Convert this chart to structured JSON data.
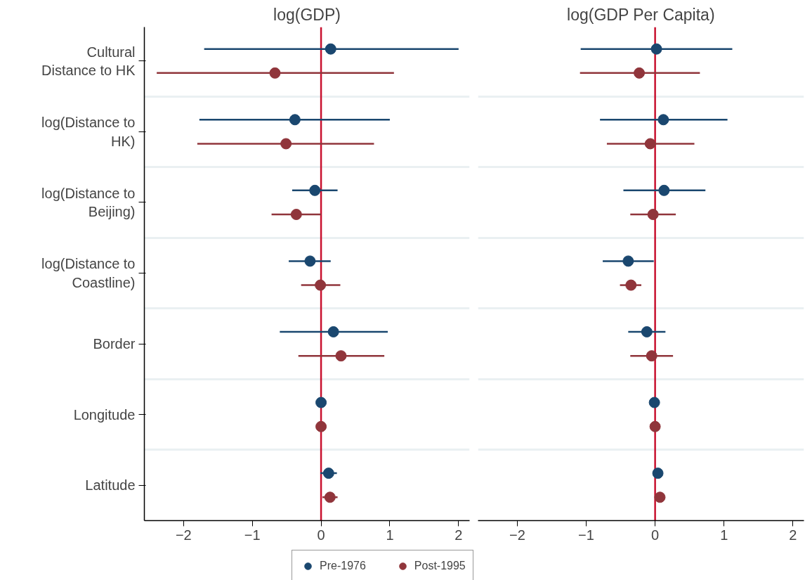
{
  "chart_data": [
    {
      "type": "scatter",
      "orientation": "horizontal",
      "title": "log(GDP)",
      "categories": [
        "Cultural Distance to HK",
        "log(Distance to HK)",
        "log(Distance to Beijing)",
        "log(Distance to Coastline)",
        "Border",
        "Longitude",
        "Latitude"
      ],
      "xlim": [
        -2.57,
        2.16
      ],
      "xticks": [
        -2,
        -1,
        0,
        1,
        2
      ],
      "grid": "y",
      "marker": "circle",
      "legend": "bottom",
      "ref_lines": [
        {
          "axis": "x",
          "value": 0,
          "color": "#c8102e"
        }
      ],
      "series": [
        {
          "name": "Pre-1976",
          "color": "#1a476f",
          "values": [
            0.14,
            -0.38,
            -0.09,
            -0.16,
            0.18,
            0.0,
            0.11
          ],
          "errors": [
            [
              -1.7,
              2.0
            ],
            [
              -1.77,
              1.0
            ],
            [
              -0.42,
              0.24
            ],
            [
              -0.47,
              0.14
            ],
            [
              -0.6,
              0.97
            ],
            null,
            [
              -0.01,
              0.23
            ]
          ]
        },
        {
          "name": "Post-1995",
          "color": "#90353b",
          "values": [
            -0.67,
            -0.51,
            -0.36,
            -0.01,
            0.29,
            0.0,
            0.13
          ],
          "errors": [
            [
              -2.39,
              1.06
            ],
            [
              -1.8,
              0.77
            ],
            [
              -0.72,
              0.0
            ],
            [
              -0.29,
              0.28
            ],
            [
              -0.33,
              0.92
            ],
            null,
            [
              0.02,
              0.24
            ]
          ]
        }
      ]
    },
    {
      "type": "scatter",
      "orientation": "horizontal",
      "title": "log(GDP Per Capita)",
      "categories": [
        "Cultural Distance to HK",
        "log(Distance to HK)",
        "log(Distance to Beijing)",
        "log(Distance to Coastline)",
        "Border",
        "Longitude",
        "Latitude"
      ],
      "xlim": [
        -2.57,
        2.16
      ],
      "xticks": [
        -2,
        -1,
        0,
        1,
        2
      ],
      "grid": "y",
      "marker": "circle",
      "tick_labels": "x",
      "ref_lines": [
        {
          "axis": "x",
          "value": 0,
          "color": "#c8102e"
        }
      ],
      "series": [
        {
          "color": "#1a476f",
          "values": [
            0.02,
            0.12,
            0.13,
            -0.39,
            -0.12,
            -0.01,
            0.04
          ],
          "errors": [
            [
              -1.08,
              1.12
            ],
            [
              -0.8,
              1.05
            ],
            [
              -0.46,
              0.73
            ],
            [
              -0.76,
              -0.02
            ],
            [
              -0.39,
              0.15
            ],
            null,
            null
          ]
        },
        {
          "color": "#90353b",
          "values": [
            -0.23,
            -0.07,
            -0.03,
            -0.35,
            -0.05,
            0.0,
            0.07
          ],
          "errors": [
            [
              -1.09,
              0.65
            ],
            [
              -0.7,
              0.57
            ],
            [
              -0.36,
              0.3
            ],
            [
              -0.51,
              -0.2
            ],
            [
              -0.36,
              0.26
            ],
            null,
            null
          ]
        }
      ]
    }
  ]
}
